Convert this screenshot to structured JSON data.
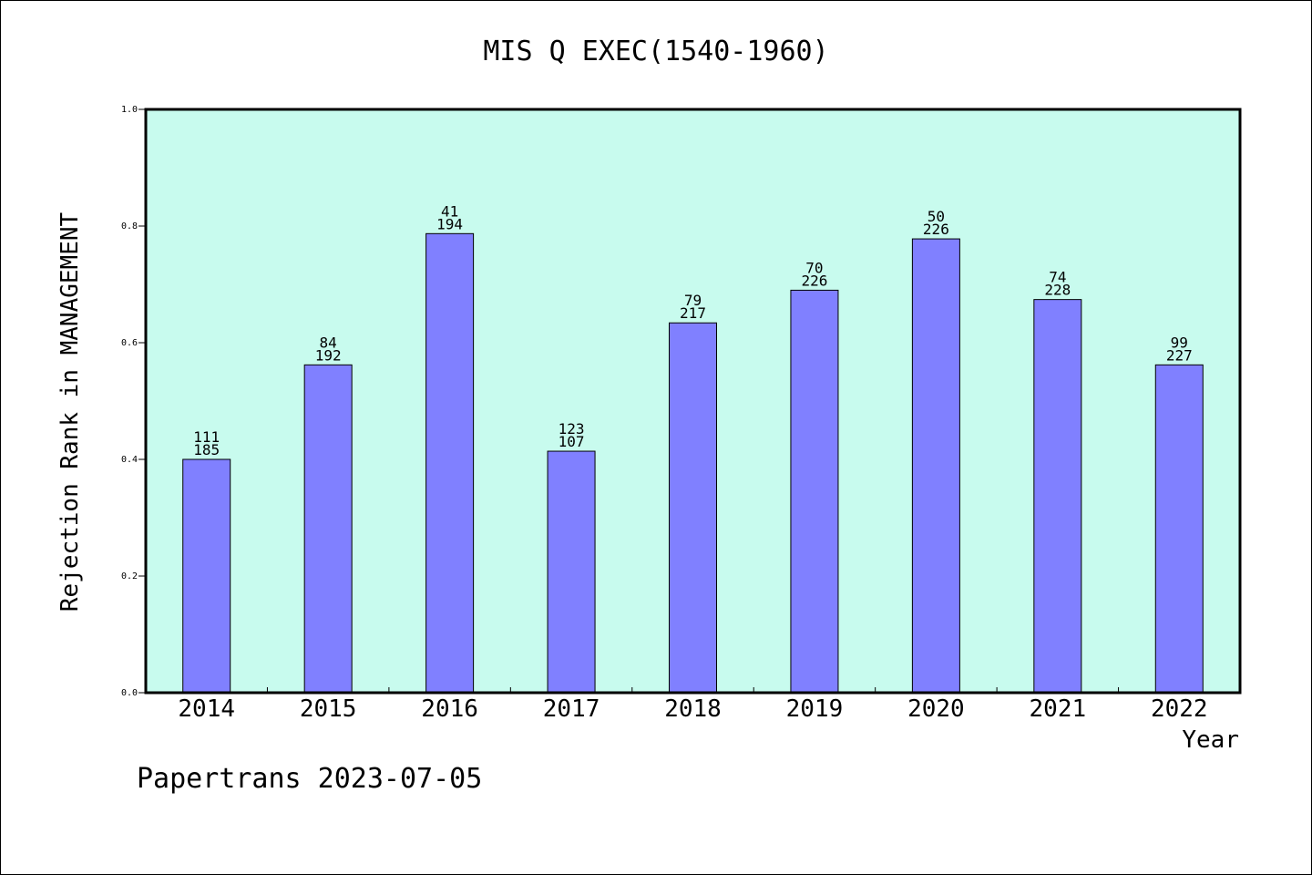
{
  "chart_data": {
    "type": "bar",
    "title": "MIS Q EXEC(1540-1960)",
    "xlabel": "Year",
    "ylabel": "Rejection Rank in MANAGEMENT",
    "categories": [
      "2014",
      "2015",
      "2016",
      "2017",
      "2018",
      "2019",
      "2020",
      "2021",
      "2022"
    ],
    "values": [
      0.4,
      0.562,
      0.787,
      0.414,
      0.634,
      0.69,
      0.778,
      0.674,
      0.562
    ],
    "labels_top": [
      "111",
      "84",
      "41",
      "123",
      "79",
      "70",
      "50",
      "74",
      "99"
    ],
    "labels_bottom": [
      "185",
      "192",
      "194",
      "107",
      "217",
      "226",
      "226",
      "228",
      "227"
    ],
    "ylim": [
      0,
      1.0
    ],
    "yticks": [
      "0.0",
      "0.2",
      "0.4",
      "0.6",
      "0.8",
      "1.0"
    ],
    "grid": false,
    "colors": {
      "plot_background": "#c8fbee",
      "bar_fill": "#8080ff",
      "bar_stroke": "#000000",
      "axis": "#000000"
    }
  },
  "footer": "Papertrans 2023-07-05"
}
